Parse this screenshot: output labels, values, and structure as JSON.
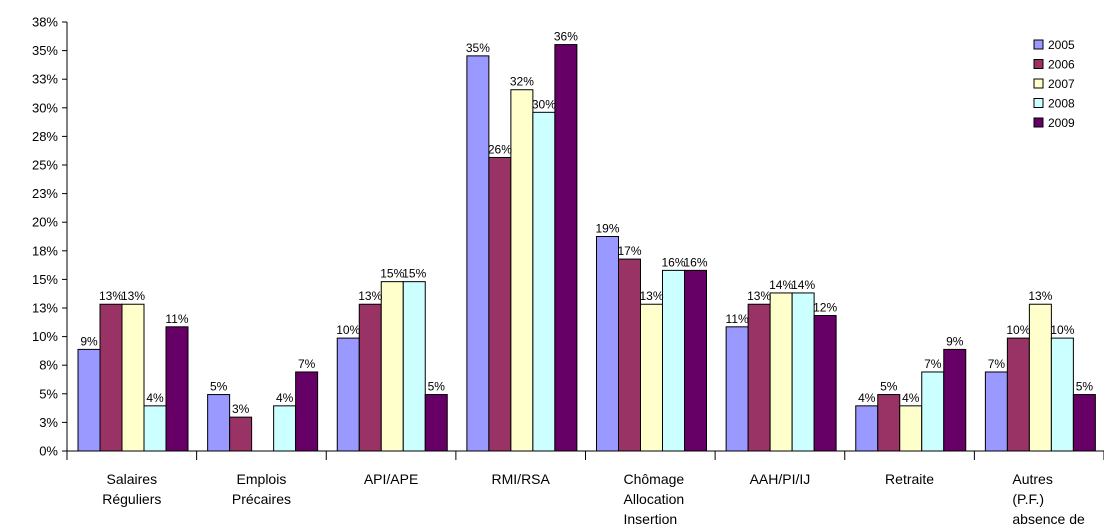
{
  "chart_data": {
    "type": "bar",
    "categories": [
      [
        "Salaires",
        "Réguliers"
      ],
      [
        "Emplois",
        "Précaires"
      ],
      [
        "API/APE"
      ],
      [
        "RMI/RSA"
      ],
      [
        "Chômage",
        "Allocation",
        "Insertion"
      ],
      [
        "AAH/PI/IJ"
      ],
      [
        "Retraite"
      ],
      [
        "Autres",
        "(P.F.)",
        "absence de"
      ]
    ],
    "series": [
      {
        "name": "2005",
        "color": "#9999ff",
        "values": [
          9,
          5,
          10,
          35,
          19,
          11,
          4,
          7
        ],
        "labels": [
          "9%",
          "5%",
          "10%",
          "35%",
          "19%",
          "11%",
          "4%",
          "7%"
        ]
      },
      {
        "name": "2006",
        "color": "#993366",
        "values": [
          13,
          3,
          13,
          26,
          17,
          13,
          5,
          10
        ],
        "labels": [
          "13%",
          "3%",
          "13%",
          "26%",
          "17%",
          "13%",
          "5%",
          "10%"
        ]
      },
      {
        "name": "2007",
        "color": "#ffffcc",
        "values": [
          13,
          null,
          15,
          32,
          13,
          14,
          4,
          13
        ],
        "labels": [
          "13%",
          "",
          "15%",
          "32%",
          "13%",
          "14%",
          "4%",
          "13%"
        ]
      },
      {
        "name": "2008",
        "color": "#ccffff",
        "values": [
          4,
          4,
          15,
          30,
          16,
          14,
          7,
          10
        ],
        "labels": [
          "4%",
          "4%",
          "15%",
          "30%",
          "16%",
          "14%",
          "7%",
          "10%"
        ]
      },
      {
        "name": "2009",
        "color": "#660066",
        "values": [
          11,
          7,
          5,
          36,
          16,
          12,
          9,
          5
        ],
        "labels": [
          "11%",
          "7%",
          "5%",
          "36%",
          "16%",
          "12%",
          "9%",
          "5%"
        ]
      }
    ],
    "y_ticks": [
      "0%",
      "3%",
      "5%",
      "8%",
      "10%",
      "13%",
      "15%",
      "18%",
      "20%",
      "23%",
      "25%",
      "28%",
      "30%",
      "33%",
      "35%",
      "38%"
    ],
    "ylim": [
      0,
      38
    ],
    "legend_position": "top-right",
    "grid": false
  }
}
